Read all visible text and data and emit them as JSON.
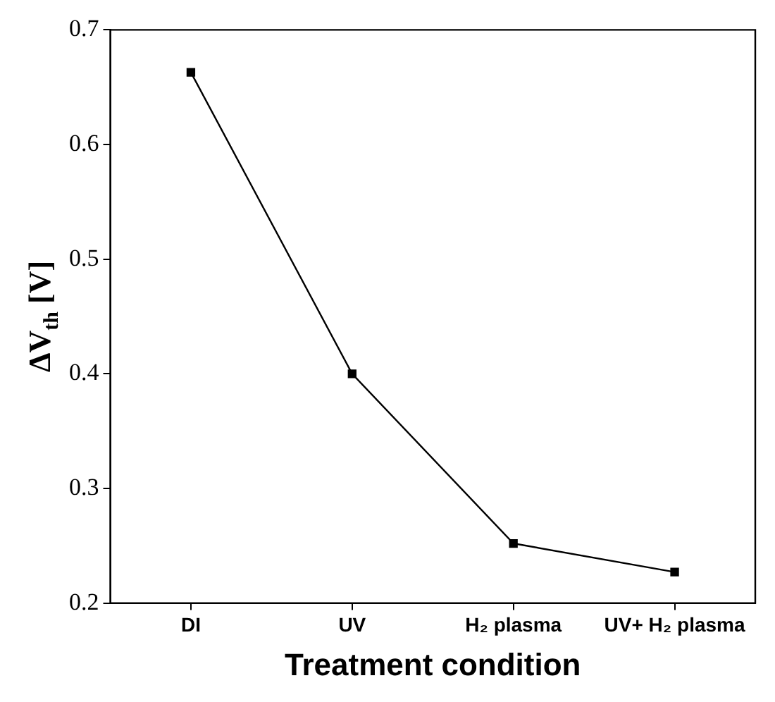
{
  "chart_data": {
    "type": "line",
    "xlabel": "Treatment condition",
    "ylabel": "ΔV$_{th}$ [V]",
    "categories": [
      "DI",
      "UV",
      "H₂ plasma",
      "UV+ H₂ plasma"
    ],
    "series": [
      {
        "color": "#000000",
        "values": [
          0.663,
          0.4,
          0.252,
          0.227
        ]
      }
    ],
    "ylim": [
      0.2,
      0.7
    ],
    "yticks": [
      0.2,
      0.3,
      0.4,
      0.5,
      0.6,
      0.7
    ],
    "grid": false,
    "legend": false,
    "marker": "square",
    "line_style": "solid"
  }
}
